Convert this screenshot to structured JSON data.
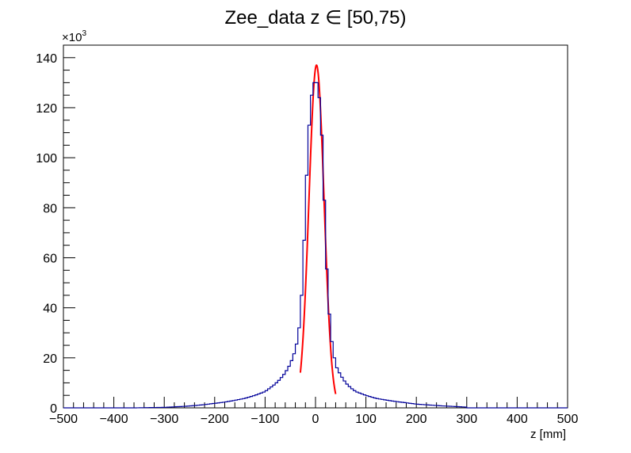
{
  "chart_data": {
    "type": "histogram",
    "title": "Zee_data z  ∈ [50,75)",
    "xlabel": "z [mm]",
    "ylabel": "",
    "multiplier_label": "×10",
    "multiplier_exponent": "3",
    "xlim": [
      -500,
      500
    ],
    "ylim": [
      0,
      145000
    ],
    "grid": false,
    "bin_width": 5,
    "x_ticks": [
      -500,
      -400,
      -300,
      -200,
      -100,
      0,
      100,
      200,
      300,
      400,
      500
    ],
    "x_tick_labels": [
      "−500",
      "−400",
      "−300",
      "−200",
      "−100",
      "0",
      "100",
      "200",
      "300",
      "400",
      "500"
    ],
    "y_ticks": [
      0,
      20000,
      40000,
      60000,
      80000,
      100000,
      120000,
      140000
    ],
    "y_tick_labels": [
      "0",
      "20",
      "40",
      "60",
      "80",
      "100",
      "120",
      "140"
    ],
    "histogram_color": "#000099",
    "fit_color": "#ff0000",
    "series": [
      {
        "kind": "histogram",
        "points": [
          [
            -300,
            200
          ],
          [
            -280,
            400
          ],
          [
            -260,
            600
          ],
          [
            -240,
            900
          ],
          [
            -220,
            1300
          ],
          [
            -200,
            1800
          ],
          [
            -180,
            2300
          ],
          [
            -160,
            3000
          ],
          [
            -140,
            3800
          ],
          [
            -120,
            5000
          ],
          [
            -100,
            6500
          ],
          [
            -90,
            8000
          ],
          [
            -80,
            9500
          ],
          [
            -70,
            11500
          ],
          [
            -60,
            14000
          ],
          [
            -50,
            17500
          ],
          [
            -40,
            23000
          ],
          [
            -35,
            28000
          ],
          [
            -30,
            36000
          ],
          [
            -25,
            54000
          ],
          [
            -20,
            80000
          ],
          [
            -15,
            106000
          ],
          [
            -10,
            120000
          ],
          [
            -5,
            130000
          ],
          [
            0,
            130000
          ],
          [
            5,
            130000
          ],
          [
            10,
            118000
          ],
          [
            15,
            100000
          ],
          [
            20,
            66000
          ],
          [
            25,
            45000
          ],
          [
            30,
            30000
          ],
          [
            35,
            23000
          ],
          [
            40,
            17000
          ],
          [
            50,
            13000
          ],
          [
            60,
            10000
          ],
          [
            70,
            8000
          ],
          [
            80,
            6500
          ],
          [
            100,
            5000
          ],
          [
            120,
            3800
          ],
          [
            150,
            2800
          ],
          [
            200,
            1500
          ],
          [
            250,
            800
          ],
          [
            300,
            300
          ]
        ]
      },
      {
        "kind": "fit",
        "function": "gaussian",
        "mean": 2,
        "sigma": 15,
        "amplitude": 137000,
        "range": [
          -30,
          40
        ]
      }
    ]
  }
}
